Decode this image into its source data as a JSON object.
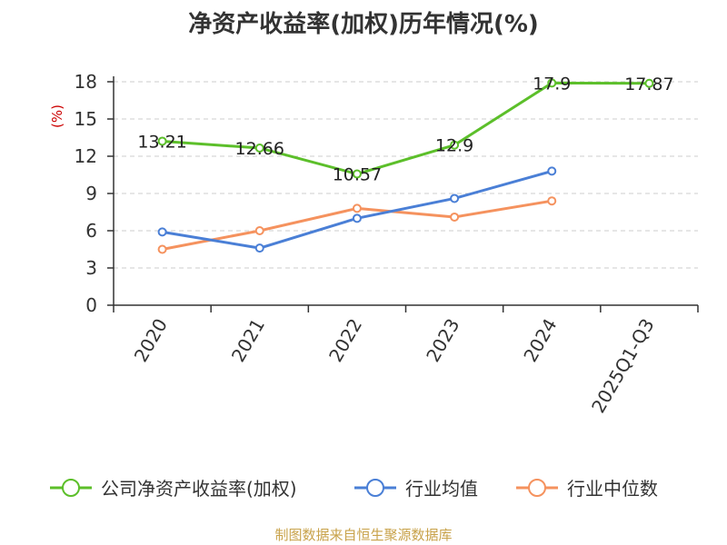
{
  "chart_data": {
    "type": "line",
    "title": "净资产收益率(加权)历年情况(%)",
    "ylabel": "(%)",
    "ylim": [
      0,
      18
    ],
    "yticks": [
      0,
      3,
      6,
      9,
      12,
      15,
      18
    ],
    "grid": true,
    "legend_position": "bottom",
    "categories": [
      "2020",
      "2021",
      "2022",
      "2023",
      "2024",
      "2025Q1-Q3"
    ],
    "series": [
      {
        "name": "公司净资产收益率(加权)",
        "color": "#5cbf2a",
        "values": [
          13.21,
          12.66,
          10.57,
          12.9,
          17.9,
          17.87
        ],
        "labels": [
          "13.21",
          "12.66",
          "10.57",
          "12.9",
          "17.9",
          "17.87"
        ]
      },
      {
        "name": "行业均值",
        "color": "#4a7fd6",
        "values": [
          5.9,
          4.6,
          7.0,
          8.6,
          10.8,
          null
        ]
      },
      {
        "name": "行业中位数",
        "color": "#f5925e",
        "values": [
          4.5,
          6.0,
          7.8,
          7.1,
          8.4,
          null
        ]
      }
    ]
  },
  "source": "制图数据来自恒生聚源数据库"
}
